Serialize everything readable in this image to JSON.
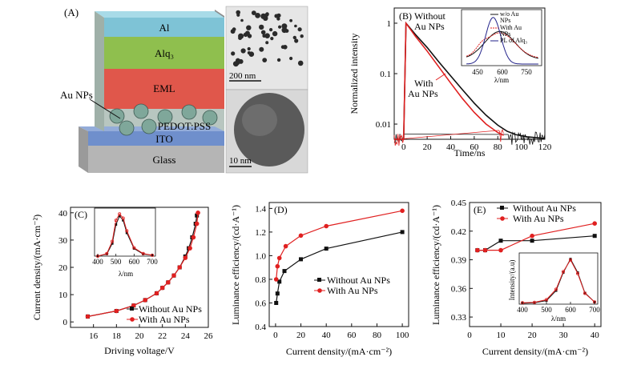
{
  "panelA": {
    "label": "(A)",
    "layers": [
      "Al",
      "Alq₃",
      "EML",
      "PEDOT:PSS",
      "ITO",
      "Glass"
    ],
    "au_label": "Au NPs",
    "scale_top": "200 nm",
    "scale_bottom": "10 nm",
    "colors": {
      "al": "#7ec3d6",
      "alq": "#8fbf4e",
      "eml": "#e0574b",
      "pedot": "#b8c6c0",
      "ito": "#6f8fcc",
      "glass": "#b5b5b5",
      "np": "#7fa79a"
    }
  },
  "panelB": {
    "label": "(B)",
    "ylabel": "Normalized intensity",
    "xlabel": "Time/ns",
    "xticks": [
      "0",
      "20",
      "40",
      "60",
      "80",
      "100",
      "120"
    ],
    "yticks": [
      "1",
      "0.1",
      "0.01"
    ],
    "ann_without": [
      "Without",
      "Au NPs"
    ],
    "ann_with": [
      "With",
      "Au NPs"
    ],
    "inset": {
      "legend": [
        "w/o Au",
        "NPs",
        "With Au",
        "NPs",
        "PL of Alq₃"
      ],
      "xticks": [
        "450",
        "600",
        "750"
      ],
      "xlabel": "λ/nm"
    }
  },
  "chart_data": [
    {
      "type": "line",
      "title": "(B)",
      "xlabel": "Time/ns",
      "ylabel": "Normalized intensity",
      "yscale": "log",
      "xlim": [
        -8,
        120
      ],
      "ylim": [
        0.005,
        2
      ],
      "series": [
        {
          "name": "Without Au NPs",
          "color": "#111111",
          "x": [
            -8,
            0,
            2,
            10,
            20,
            30,
            40,
            50,
            60,
            70,
            80,
            88,
            95,
            105,
            120
          ],
          "y": [
            0.005,
            0.005,
            1.0,
            0.6,
            0.33,
            0.17,
            0.09,
            0.048,
            0.026,
            0.015,
            0.0095,
            0.0072,
            0.0062,
            0.0056,
            0.0052
          ]
        },
        {
          "name": "With Au NPs",
          "color": "#e02020",
          "x": [
            -8,
            0,
            2,
            10,
            20,
            30,
            40,
            50,
            60,
            70,
            80,
            85
          ],
          "y": [
            0.005,
            0.005,
            1.0,
            0.55,
            0.28,
            0.135,
            0.065,
            0.032,
            0.017,
            0.01,
            0.0068,
            0.006
          ]
        }
      ]
    },
    {
      "type": "line",
      "title": "(C)",
      "xlabel": "Driving voltage/V",
      "ylabel": "Current density/(mA·cm⁻²)",
      "xlim": [
        14,
        26
      ],
      "ylim": [
        -2,
        42
      ],
      "xticks": [
        16,
        18,
        20,
        22,
        24,
        26
      ],
      "yticks": [
        0,
        10,
        20,
        30,
        40
      ],
      "series": [
        {
          "name": "Without Au NPs",
          "color": "#111111",
          "x": [
            15.5,
            18,
            19.5,
            20.5,
            21.5,
            22,
            22.5,
            23,
            23.5,
            24,
            24.3,
            24.6,
            24.9,
            25
          ],
          "y": [
            2,
            4,
            6,
            8,
            10.5,
            12.5,
            14.5,
            17,
            20,
            24,
            27,
            31,
            36,
            39
          ]
        },
        {
          "name": "With Au NPs",
          "color": "#e02020",
          "x": [
            15.5,
            18,
            19.5,
            20.5,
            21.5,
            22,
            22.5,
            23,
            23.5,
            24,
            24.4,
            24.7,
            25,
            25.1
          ],
          "y": [
            2,
            4,
            6,
            8,
            10.5,
            12.5,
            14.5,
            17,
            20,
            23.5,
            27,
            31,
            36,
            40
          ]
        }
      ],
      "inset": {
        "xticks": [
          400,
          500,
          600,
          700
        ],
        "xlabel": "λ/nm",
        "series": [
          {
            "name": "Without Au NPs",
            "x": [
              400,
              450,
              480,
              500,
              520,
              540,
              560,
              600,
              650,
              700
            ],
            "y": [
              0.0,
              0.05,
              0.3,
              0.75,
              0.95,
              0.85,
              0.55,
              0.18,
              0.05,
              0.02
            ]
          },
          {
            "name": "With Au NPs",
            "x": [
              400,
              450,
              480,
              500,
              520,
              540,
              560,
              600,
              650,
              700
            ],
            "y": [
              0.0,
              0.06,
              0.35,
              0.85,
              1.0,
              0.9,
              0.6,
              0.2,
              0.06,
              0.02
            ]
          }
        ]
      }
    },
    {
      "type": "line",
      "title": "(D)",
      "xlabel": "Current density/(mA·cm⁻²)",
      "ylabel": "Luminance efficiency/(cd·A⁻¹)",
      "xlim": [
        -5,
        105
      ],
      "ylim": [
        0.4,
        1.45
      ],
      "xticks": [
        0,
        20,
        40,
        60,
        80,
        100
      ],
      "yticks": [
        0.4,
        0.6,
        0.8,
        1.0,
        1.2,
        1.4
      ],
      "series": [
        {
          "name": "Without Au NPs",
          "color": "#111111",
          "x": [
            0.5,
            1.5,
            3,
            7,
            20,
            40,
            100
          ],
          "y": [
            0.6,
            0.68,
            0.78,
            0.87,
            0.97,
            1.06,
            1.2
          ]
        },
        {
          "name": "With Au NPs",
          "color": "#e02020",
          "x": [
            0.5,
            1.5,
            3,
            8,
            20,
            40,
            100
          ],
          "y": [
            0.8,
            0.91,
            0.98,
            1.08,
            1.17,
            1.25,
            1.38
          ]
        }
      ]
    },
    {
      "type": "line",
      "title": "(E)",
      "xlabel": "Current density/(mA·cm⁻²)",
      "ylabel": "Luminance efficiency/(cd·A⁻¹)",
      "xlim": [
        0,
        42
      ],
      "ylim": [
        0.32,
        0.45
      ],
      "xticks": [
        0,
        10,
        20,
        30,
        40
      ],
      "yticks": [
        0.33,
        0.36,
        0.39,
        0.42,
        0.45
      ],
      "series": [
        {
          "name": "Without Au NPs",
          "color": "#111111",
          "x": [
            2.5,
            5,
            10,
            20,
            40
          ],
          "y": [
            0.4,
            0.4,
            0.41,
            0.41,
            0.415
          ]
        },
        {
          "name": "With Au NPs",
          "color": "#e02020",
          "x": [
            2.5,
            5,
            10,
            20,
            40
          ],
          "y": [
            0.4,
            0.4,
            0.4,
            0.415,
            0.428
          ]
        }
      ],
      "inset": {
        "xticks": [
          400,
          500,
          600,
          700
        ],
        "xlabel": "λ/nm",
        "ylabel": "Intensity/(a.u)",
        "series": [
          {
            "name": "Without Au NPs",
            "x": [
              400,
              450,
              500,
              540,
              570,
              600,
              630,
              660,
              700
            ],
            "y": [
              0.02,
              0.03,
              0.08,
              0.3,
              0.7,
              1.0,
              0.7,
              0.25,
              0.05
            ]
          },
          {
            "name": "With Au NPs",
            "x": [
              400,
              450,
              500,
              540,
              570,
              600,
              630,
              660,
              700
            ],
            "y": [
              0.03,
              0.04,
              0.1,
              0.33,
              0.72,
              0.98,
              0.68,
              0.24,
              0.05
            ]
          }
        ]
      }
    }
  ],
  "text": {
    "c_label": "(C)",
    "d_label": "(D)",
    "e_label": "(E)",
    "c_legend": [
      "Without Au NPs",
      "With Au NPs"
    ],
    "d_legend": [
      "Without Au NPs",
      "With Au NPs"
    ],
    "e_legend": [
      "Without Au NPs",
      "With Au NPs"
    ]
  }
}
